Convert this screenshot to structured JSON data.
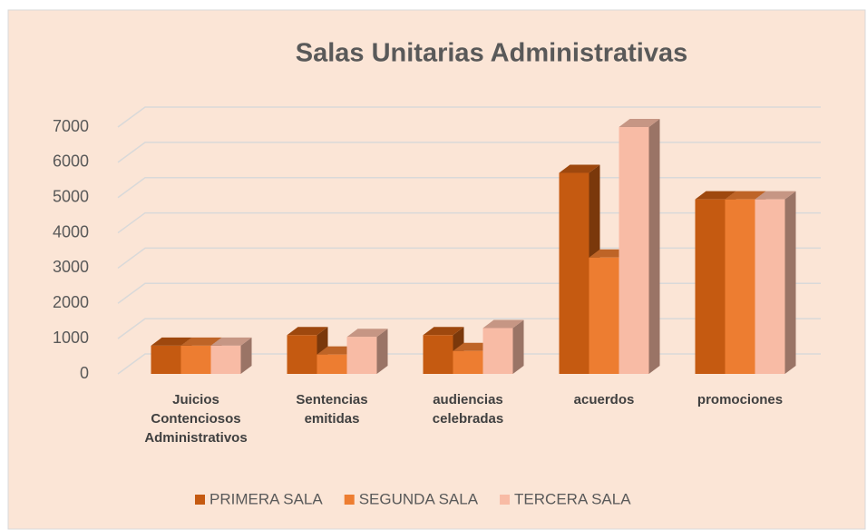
{
  "chart_data": {
    "type": "bar3d",
    "title": "Salas Unitarias Administrativas",
    "categories": [
      "Juicios Contenciosos Administrativos",
      "Sentencias emitidas",
      "audiencias celebradas",
      "acuerdos",
      "promociones"
    ],
    "series": [
      {
        "name": "PRIMERA SALA",
        "color": "#c55a11",
        "values": [
          800,
          1100,
          1100,
          5700,
          4950
        ]
      },
      {
        "name": "SEGUNDA SALA",
        "color": "#ed7d31",
        "values": [
          800,
          550,
          650,
          3300,
          4950
        ]
      },
      {
        "name": "TERCERA SALA",
        "color": "#f8bba5",
        "values": [
          800,
          1050,
          1300,
          7000,
          4950
        ]
      }
    ],
    "ylim": [
      0,
      7000
    ],
    "yticks": [
      0,
      1000,
      2000,
      3000,
      4000,
      5000,
      6000,
      7000
    ],
    "grid": true,
    "legend": "bottom"
  }
}
